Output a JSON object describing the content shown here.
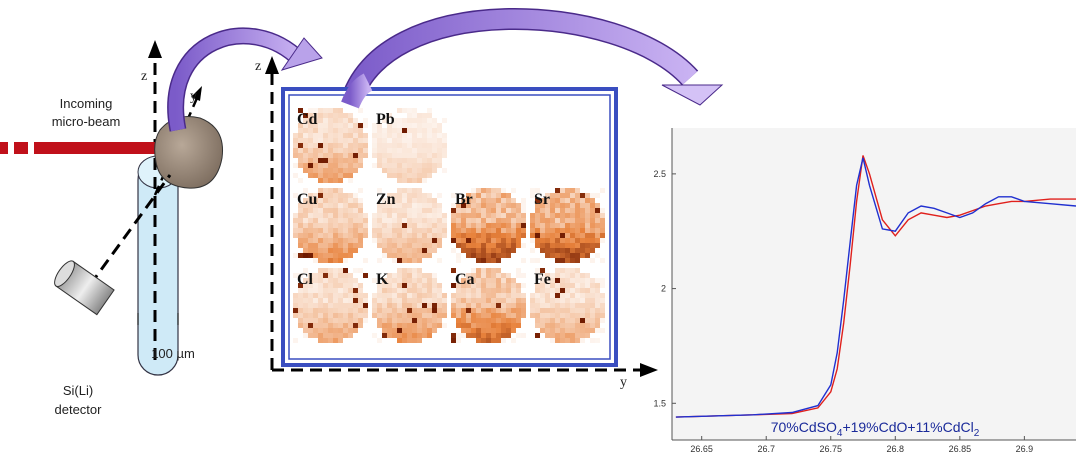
{
  "beam_label": [
    "Incoming",
    "micro-beam"
  ],
  "detector_label": [
    "Si(Li)",
    "detector"
  ],
  "scale_label": "100 µm",
  "sample_axes": {
    "z": "z",
    "y": "y"
  },
  "map_axes": {
    "z": "z",
    "y": "y"
  },
  "maps": [
    "Cd",
    "Pb",
    "Cu",
    "Zn",
    "Br",
    "Sr",
    "Cl",
    "K",
    "Ca",
    "Fe"
  ],
  "chart_data": {
    "type": "line",
    "x": [
      26.63,
      26.66,
      26.69,
      26.72,
      26.74,
      26.75,
      26.755,
      26.76,
      26.765,
      26.77,
      26.775,
      26.78,
      26.79,
      26.8,
      26.81,
      26.82,
      26.83,
      26.84,
      26.85,
      26.86,
      26.87,
      26.88,
      26.89,
      26.9,
      26.92,
      26.94
    ],
    "series": [
      {
        "color": "#e0201c",
        "values": [
          1.44,
          1.445,
          1.45,
          1.455,
          1.48,
          1.55,
          1.65,
          1.85,
          2.1,
          2.38,
          2.58,
          2.5,
          2.3,
          2.23,
          2.3,
          2.33,
          2.32,
          2.31,
          2.32,
          2.34,
          2.36,
          2.37,
          2.38,
          2.38,
          2.39,
          2.39
        ]
      },
      {
        "color": "#2030d0",
        "values": [
          1.44,
          1.445,
          1.45,
          1.46,
          1.49,
          1.58,
          1.72,
          1.95,
          2.2,
          2.45,
          2.57,
          2.45,
          2.26,
          2.25,
          2.33,
          2.36,
          2.35,
          2.33,
          2.31,
          2.33,
          2.37,
          2.4,
          2.4,
          2.38,
          2.37,
          2.36
        ]
      }
    ],
    "xlim": [
      26.627,
      26.94
    ],
    "ylim": [
      1.34,
      2.7
    ],
    "xticks": [
      26.65,
      26.7,
      26.75,
      26.8,
      26.85,
      26.9
    ],
    "yticks": [
      1.5,
      2,
      2.5
    ],
    "annotation": [
      "70%CdSO",
      "4",
      "+19%CdO+11%CdCl",
      "2"
    ],
    "annotation_color": "#1a2a9a"
  }
}
